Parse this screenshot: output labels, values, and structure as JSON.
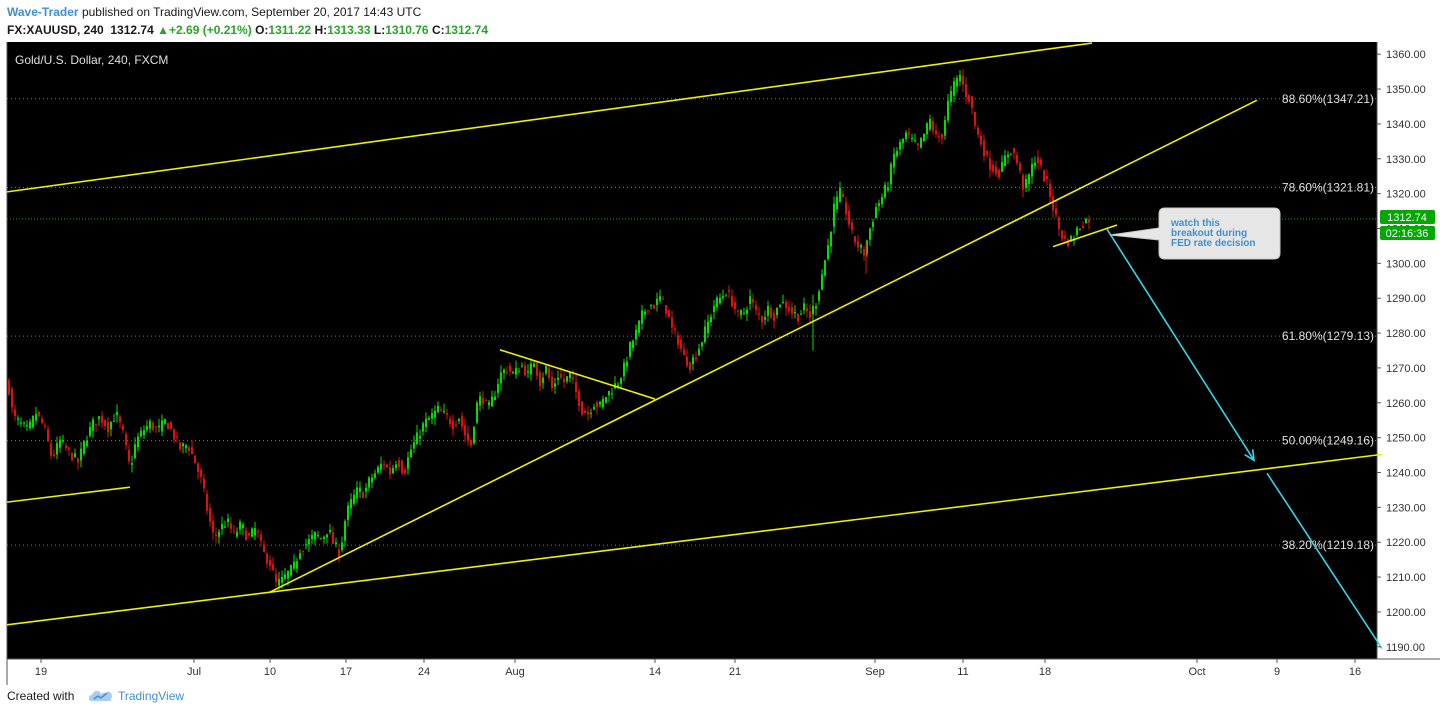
{
  "header": {
    "author": "Wave-Trader",
    "published_text": "published on TradingView.com, September 20, 2017 14:43 UTC",
    "symbol": "FX:XAUUSD, 240",
    "last": "1312.74",
    "change_arrow": "▲",
    "change": "+2.69 (+0.21%)",
    "open_label": "O:",
    "open": "1311.22",
    "high_label": "H:",
    "high": "1313.33",
    "low_label": "L:",
    "low": "1310.76",
    "close_label": "C:",
    "close": "1312.74"
  },
  "footer": {
    "created_with": "Created with",
    "brand": "TradingView"
  },
  "colors": {
    "background": "#000000",
    "up_candle": "#00e000",
    "down_candle": "#e01010",
    "trendline": "#f0f000",
    "projection_arrow": "#33d6e8",
    "price_tag": "#00a800",
    "accent": "#3d8fd6"
  },
  "chart_data": {
    "type": "candlestick",
    "title": "Gold/U.S. Dollar, 240, FXCM",
    "timeframe": "240",
    "x_ticks": [
      "19",
      "Jul",
      "10",
      "17",
      "24",
      "Aug",
      "14",
      "21",
      "Sep",
      "11",
      "18",
      "Oct",
      "9",
      "16"
    ],
    "y_ticks": [
      1190,
      1200,
      1210,
      1220,
      1230,
      1240,
      1250,
      1260,
      1270,
      1280,
      1290,
      1300,
      1310,
      1320,
      1330,
      1340,
      1350,
      1360
    ],
    "ylim": [
      1186.5,
      1363.5
    ],
    "last_price": "1312.74",
    "countdown": "02:16:36",
    "fib_levels": [
      {
        "label": "88.60%(1347.21)",
        "value": 1347.21
      },
      {
        "label": "78.60%(1321.81)",
        "value": 1321.81
      },
      {
        "label": "61.80%(1279.13)",
        "value": 1279.13
      },
      {
        "label": "50.00%(1249.16)",
        "value": 1249.16
      },
      {
        "label": "38.20%(1219.18)",
        "value": 1219.18
      }
    ],
    "price_path": [
      [
        0,
        1266
      ],
      [
        5,
        1256
      ],
      [
        12,
        1254
      ],
      [
        20,
        1252
      ],
      [
        28,
        1257
      ],
      [
        36,
        1253
      ],
      [
        44,
        1244
      ],
      [
        52,
        1249
      ],
      [
        60,
        1246
      ],
      [
        70,
        1243
      ],
      [
        78,
        1250
      ],
      [
        85,
        1254
      ],
      [
        92,
        1256
      ],
      [
        100,
        1253
      ],
      [
        108,
        1257
      ],
      [
        115,
        1251
      ],
      [
        122,
        1241
      ],
      [
        128,
        1249
      ],
      [
        135,
        1252
      ],
      [
        142,
        1254
      ],
      [
        150,
        1252
      ],
      [
        158,
        1255
      ],
      [
        165,
        1251
      ],
      [
        172,
        1247
      ],
      [
        180,
        1248
      ],
      [
        187,
        1243
      ],
      [
        194,
        1237
      ],
      [
        200,
        1228
      ],
      [
        206,
        1221
      ],
      [
        212,
        1224
      ],
      [
        219,
        1226
      ],
      [
        226,
        1222
      ],
      [
        233,
        1225
      ],
      [
        240,
        1221
      ],
      [
        248,
        1224
      ],
      [
        255,
        1217
      ],
      [
        262,
        1214
      ],
      [
        268,
        1208
      ],
      [
        274,
        1209
      ],
      [
        280,
        1211
      ],
      [
        286,
        1213
      ],
      [
        292,
        1218
      ],
      [
        300,
        1220
      ],
      [
        307,
        1222
      ],
      [
        314,
        1221
      ],
      [
        320,
        1224
      ],
      [
        326,
        1219
      ],
      [
        332,
        1217
      ],
      [
        338,
        1228
      ],
      [
        344,
        1232
      ],
      [
        350,
        1235
      ],
      [
        356,
        1234
      ],
      [
        362,
        1238
      ],
      [
        368,
        1240
      ],
      [
        375,
        1243
      ],
      [
        382,
        1240
      ],
      [
        389,
        1244
      ],
      [
        396,
        1240
      ],
      [
        402,
        1246
      ],
      [
        409,
        1250
      ],
      [
        416,
        1254
      ],
      [
        423,
        1256
      ],
      [
        430,
        1258
      ],
      [
        438,
        1256
      ],
      [
        445,
        1254
      ],
      [
        451,
        1256
      ],
      [
        458,
        1250
      ],
      [
        463,
        1248
      ],
      [
        468,
        1259
      ],
      [
        474,
        1262
      ],
      [
        480,
        1258
      ],
      [
        486,
        1262
      ],
      [
        492,
        1268
      ],
      [
        499,
        1270
      ],
      [
        506,
        1268
      ],
      [
        513,
        1271
      ],
      [
        520,
        1268
      ],
      [
        526,
        1272
      ],
      [
        532,
        1266
      ],
      [
        538,
        1270
      ],
      [
        544,
        1264
      ],
      [
        550,
        1268
      ],
      [
        556,
        1266
      ],
      [
        562,
        1268
      ],
      [
        568,
        1263
      ],
      [
        574,
        1258
      ],
      [
        580,
        1257
      ],
      [
        586,
        1260
      ],
      [
        592,
        1259
      ],
      [
        598,
        1262
      ],
      [
        604,
        1264
      ],
      [
        610,
        1266
      ],
      [
        616,
        1270
      ],
      [
        622,
        1276
      ],
      [
        628,
        1280
      ],
      [
        634,
        1285
      ],
      [
        640,
        1288
      ],
      [
        646,
        1288
      ],
      [
        652,
        1290
      ],
      [
        658,
        1287
      ],
      [
        664,
        1281
      ],
      [
        670,
        1278
      ],
      [
        676,
        1273
      ],
      [
        682,
        1271
      ],
      [
        688,
        1274
      ],
      [
        694,
        1278
      ],
      [
        700,
        1283
      ],
      [
        706,
        1288
      ],
      [
        712,
        1290
      ],
      [
        718,
        1292
      ],
      [
        724,
        1289
      ],
      [
        730,
        1285
      ],
      [
        736,
        1286
      ],
      [
        742,
        1290
      ],
      [
        748,
        1286
      ],
      [
        754,
        1284
      ],
      [
        760,
        1287
      ],
      [
        766,
        1285
      ],
      [
        772,
        1289
      ],
      [
        778,
        1288
      ],
      [
        784,
        1286
      ],
      [
        790,
        1285
      ],
      [
        796,
        1287
      ],
      [
        802,
        1285
      ],
      [
        808,
        1289
      ],
      [
        814,
        1297
      ],
      [
        820,
        1305
      ],
      [
        826,
        1316
      ],
      [
        832,
        1320
      ],
      [
        838,
        1315
      ],
      [
        844,
        1308
      ],
      [
        850,
        1305
      ],
      [
        856,
        1303
      ],
      [
        862,
        1310
      ],
      [
        868,
        1316
      ],
      [
        874,
        1319
      ],
      [
        880,
        1323
      ],
      [
        886,
        1331
      ],
      [
        892,
        1334
      ],
      [
        898,
        1337
      ],
      [
        904,
        1335
      ],
      [
        910,
        1333
      ],
      [
        916,
        1337
      ],
      [
        922,
        1341
      ],
      [
        928,
        1336
      ],
      [
        934,
        1337
      ],
      [
        940,
        1346
      ],
      [
        946,
        1351
      ],
      [
        952,
        1354
      ],
      [
        957,
        1349
      ],
      [
        962,
        1347
      ],
      [
        968,
        1338
      ],
      [
        974,
        1334
      ],
      [
        980,
        1329
      ],
      [
        986,
        1327
      ],
      [
        992,
        1326
      ],
      [
        998,
        1331
      ],
      [
        1004,
        1333
      ],
      [
        1010,
        1328
      ],
      [
        1016,
        1321
      ],
      [
        1022,
        1326
      ],
      [
        1028,
        1331
      ],
      [
        1034,
        1326
      ],
      [
        1040,
        1322
      ],
      [
        1046,
        1315
      ],
      [
        1052,
        1309
      ],
      [
        1058,
        1306
      ],
      [
        1064,
        1307
      ],
      [
        1070,
        1310
      ],
      [
        1076,
        1312
      ],
      [
        1082,
        1313
      ]
    ],
    "trendlines": [
      {
        "from": [
          0,
          1320.5
        ],
        "to": [
          1085,
          1363.2
        ],
        "color": "trendline"
      },
      {
        "from": [
          0,
          1231.5
        ],
        "to": [
          123,
          1235.8
        ],
        "color": "trendline"
      },
      {
        "from": [
          0,
          1196.3
        ],
        "to": [
          1375,
          1245.2
        ],
        "color": "trendline"
      },
      {
        "from": [
          263,
          1205.7
        ],
        "to": [
          1250,
          1346.8
        ],
        "color": "trendline"
      },
      {
        "from": [
          493,
          1275.2
        ],
        "to": [
          648,
          1261.1
        ],
        "color": "trendline"
      },
      {
        "from": [
          1046,
          1304.8
        ],
        "to": [
          1110,
          1311.0
        ],
        "color": "trendline"
      }
    ],
    "projection": [
      {
        "from": [
          1100,
          1309.8
        ],
        "to": [
          1247,
          1243.5
        ],
        "arrow": true
      },
      {
        "from": [
          1260,
          1239.8
        ],
        "to": [
          1375,
          1189.5
        ],
        "arrow": false
      }
    ],
    "annotation": {
      "text_lines": [
        "watch this",
        "breakout during",
        "FED rate decision"
      ],
      "anchor": [
        1100,
        1308.5
      ]
    }
  }
}
